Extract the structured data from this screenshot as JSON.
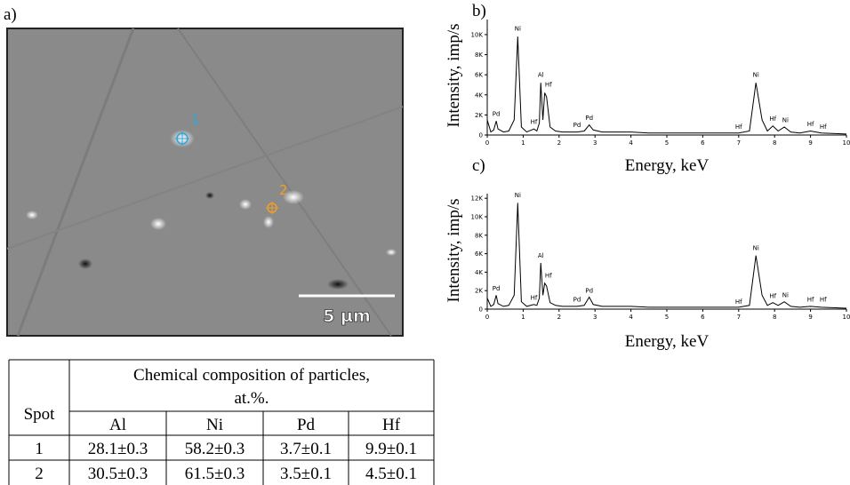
{
  "panels": {
    "a": "a)",
    "b": "b)",
    "c": "c)"
  },
  "image": {
    "markers": [
      "1",
      "2"
    ],
    "scale_bar": "5 µm"
  },
  "chart_data": [
    {
      "type": "line",
      "x_label": "Energy, keV",
      "y_label": "Intensity, imp/s",
      "color": "#000000",
      "x": [
        0,
        0.1,
        0.18,
        0.25,
        0.3,
        0.45,
        0.6,
        0.75,
        0.85,
        0.95,
        1.1,
        1.3,
        1.38,
        1.45,
        1.49,
        1.55,
        1.6,
        1.65,
        1.75,
        1.9,
        2.1,
        2.5,
        2.7,
        2.84,
        2.95,
        3.2,
        4,
        4.5,
        5,
        6,
        7,
        7.3,
        7.48,
        7.65,
        7.8,
        7.95,
        8.1,
        8.27,
        8.45,
        8.7,
        9.0,
        9.3,
        10
      ],
      "values": [
        1500,
        300,
        500,
        1400,
        600,
        300,
        400,
        1500,
        9800,
        800,
        300,
        600,
        400,
        1200,
        5200,
        1500,
        4200,
        3800,
        800,
        400,
        300,
        300,
        400,
        1000,
        500,
        300,
        300,
        200,
        200,
        200,
        200,
        400,
        5200,
        1500,
        400,
        900,
        400,
        800,
        300,
        200,
        400,
        200,
        100
      ],
      "xlim": [
        0,
        10
      ],
      "ylim": [
        0,
        11500
      ],
      "xticks": [
        0,
        1,
        2,
        3,
        4,
        5,
        6,
        7,
        8,
        9,
        10
      ],
      "yticks": [
        0,
        {
          "value": 2000,
          "label": "2K"
        },
        {
          "value": 4000,
          "label": "4K"
        },
        {
          "value": 6000,
          "label": "6K"
        },
        {
          "value": 8000,
          "label": "8K"
        },
        {
          "value": 10000,
          "label": "10K"
        }
      ],
      "annotations": [
        {
          "text": "Pd",
          "x": 0.25,
          "y": 1900
        },
        {
          "text": "Ni",
          "x": 0.85,
          "y": 10400
        },
        {
          "text": "Hf",
          "x": 1.3,
          "y": 1100
        },
        {
          "text": "Al",
          "x": 1.49,
          "y": 5800
        },
        {
          "text": "Hf",
          "x": 1.7,
          "y": 4800
        },
        {
          "text": "Pd",
          "x": 2.5,
          "y": 800
        },
        {
          "text": "Pd",
          "x": 2.84,
          "y": 1500
        },
        {
          "text": "Hf",
          "x": 7.0,
          "y": 600
        },
        {
          "text": "Ni",
          "x": 7.48,
          "y": 5800
        },
        {
          "text": "Hf",
          "x": 7.95,
          "y": 1400
        },
        {
          "text": "Ni",
          "x": 8.3,
          "y": 1300
        },
        {
          "text": "Hf",
          "x": 9.0,
          "y": 900
        },
        {
          "text": "Hf",
          "x": 9.35,
          "y": 600
        }
      ]
    },
    {
      "type": "line",
      "x_label": "Energy, keV",
      "y_label": "Intensity, imp/s",
      "color": "#000000",
      "x": [
        0,
        0.1,
        0.18,
        0.25,
        0.3,
        0.45,
        0.6,
        0.75,
        0.85,
        0.95,
        1.1,
        1.3,
        1.38,
        1.45,
        1.49,
        1.55,
        1.6,
        1.65,
        1.75,
        1.9,
        2.1,
        2.5,
        2.7,
        2.84,
        2.95,
        3.2,
        4,
        4.5,
        5,
        6,
        7,
        7.3,
        7.48,
        7.65,
        7.8,
        7.95,
        8.1,
        8.27,
        8.45,
        8.7,
        9.0,
        9.3,
        10
      ],
      "values": [
        1200,
        300,
        500,
        1500,
        600,
        300,
        400,
        1500,
        11500,
        800,
        300,
        500,
        400,
        1200,
        5000,
        1500,
        2800,
        2500,
        700,
        400,
        300,
        300,
        400,
        1300,
        500,
        300,
        300,
        200,
        200,
        200,
        200,
        400,
        5800,
        1500,
        400,
        700,
        400,
        800,
        300,
        200,
        300,
        200,
        100
      ],
      "xlim": [
        0,
        10
      ],
      "ylim": [
        0,
        12500
      ],
      "xticks": [
        0,
        1,
        2,
        3,
        4,
        5,
        6,
        7,
        8,
        9,
        10
      ],
      "yticks": [
        0,
        {
          "value": 2000,
          "label": "2K"
        },
        {
          "value": 4000,
          "label": "4K"
        },
        {
          "value": 6000,
          "label": "6K"
        },
        {
          "value": 8000,
          "label": "8K"
        },
        {
          "value": 10000,
          "label": "10K"
        },
        {
          "value": 12000,
          "label": "12K"
        }
      ],
      "annotations": [
        {
          "text": "Pd",
          "x": 0.25,
          "y": 2000
        },
        {
          "text": "Ni",
          "x": 0.85,
          "y": 12100
        },
        {
          "text": "Hf",
          "x": 1.3,
          "y": 1000
        },
        {
          "text": "Al",
          "x": 1.49,
          "y": 5600
        },
        {
          "text": "Hf",
          "x": 1.7,
          "y": 3400
        },
        {
          "text": "Pd",
          "x": 2.5,
          "y": 800
        },
        {
          "text": "Pd",
          "x": 2.84,
          "y": 1800
        },
        {
          "text": "Hf",
          "x": 7.0,
          "y": 600
        },
        {
          "text": "Ni",
          "x": 7.48,
          "y": 6400
        },
        {
          "text": "Hf",
          "x": 7.95,
          "y": 1200
        },
        {
          "text": "Ni",
          "x": 8.3,
          "y": 1300
        },
        {
          "text": "Hf",
          "x": 9.0,
          "y": 800
        },
        {
          "text": "Hf",
          "x": 9.35,
          "y": 800
        }
      ]
    }
  ],
  "table": {
    "spot_header": "Spot",
    "title": "Chemical composition of particles,",
    "title_unit": "at.%.",
    "columns": [
      "Al",
      "Ni",
      "Pd",
      "Hf"
    ],
    "rows": [
      [
        "1",
        "28.1±0.3",
        "58.2±0.3",
        "3.7±0.1",
        "9.9±0.1"
      ],
      [
        "2",
        "30.5±0.3",
        "61.5±0.3",
        "3.5±0.1",
        "4.5±0.1"
      ]
    ]
  }
}
